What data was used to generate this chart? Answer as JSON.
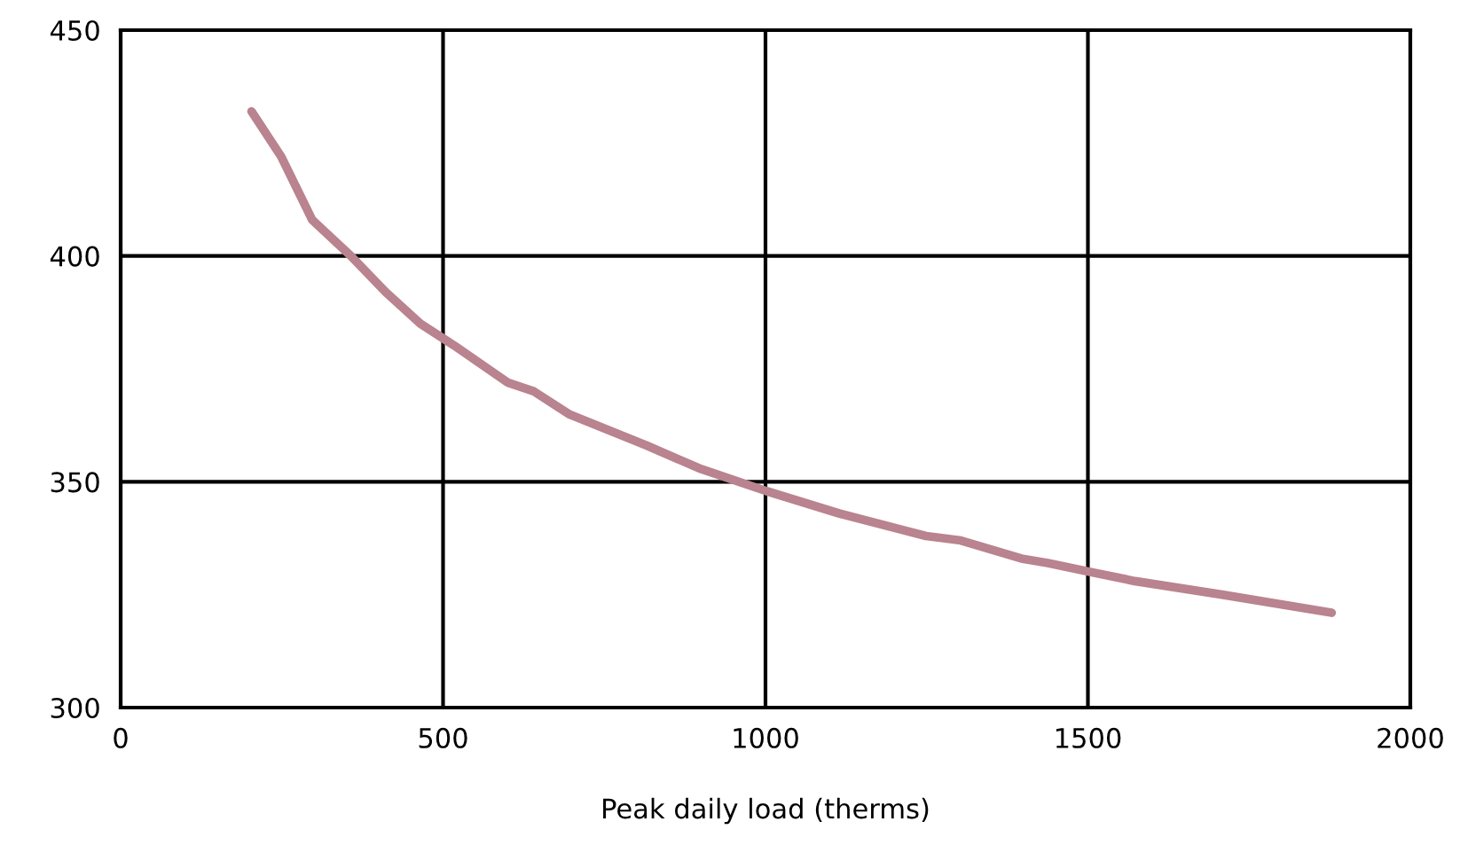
{
  "chart_data": {
    "type": "line",
    "xlabel": "Peak daily load (therms)",
    "xlim": [
      0,
      2000
    ],
    "xticks": [
      0,
      500,
      1000,
      1500,
      2000
    ],
    "ylim": [
      300,
      450
    ],
    "yticks": [
      300,
      350,
      400,
      450
    ],
    "grid": true,
    "series": [
      {
        "color": "#b9838f",
        "x": [
          203,
          249,
          297,
          357,
          411,
          465,
          519,
          600,
          641,
          695,
          816,
          897,
          1000,
          1114,
          1249,
          1303,
          1397,
          1438,
          1505,
          1573,
          1708,
          1878
        ],
        "values": [
          432,
          422,
          408,
          400,
          392,
          385,
          380,
          372,
          370,
          365,
          358,
          353,
          348,
          343,
          338,
          337,
          333,
          332,
          330,
          328,
          325,
          321
        ]
      }
    ]
  }
}
